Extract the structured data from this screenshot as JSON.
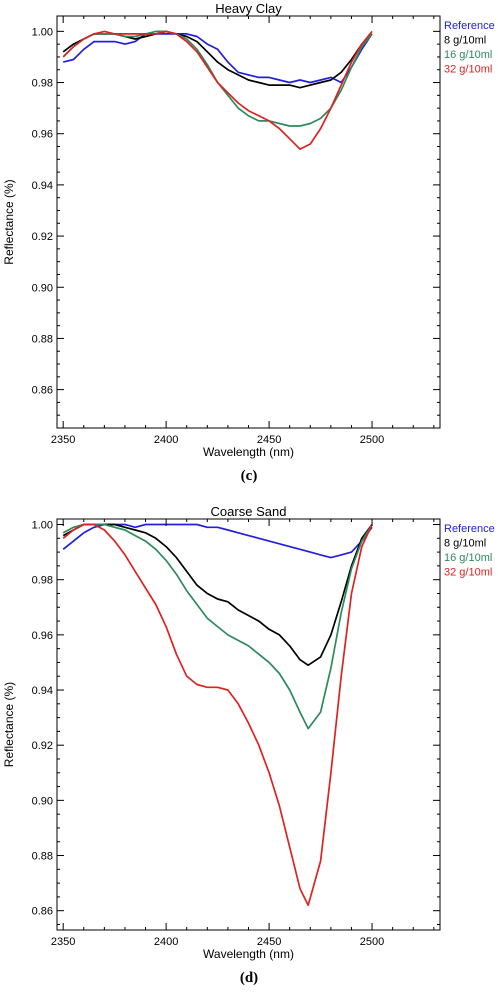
{
  "chart_data": [
    {
      "type": "line",
      "title": "Heavy Clay",
      "xlabel": "Wavelength (nm)",
      "ylabel": "Reflectance (%)",
      "xlim": [
        2347,
        2533
      ],
      "ylim": [
        0.845,
        1.006
      ],
      "xticks": [
        2350,
        2400,
        2450,
        2500
      ],
      "xtick_labels": [
        "2350",
        "2400",
        "2450",
        "2500"
      ],
      "yticks": [
        0.86,
        0.88,
        0.9,
        0.92,
        0.94,
        0.96,
        0.98,
        1.0
      ],
      "ytick_labels": [
        "0.86",
        "0.88",
        "0.90",
        "0.92",
        "0.94",
        "0.96",
        "0.98",
        "1.00"
      ],
      "legend_position": "outside-right-top",
      "caption": "(c)",
      "series": [
        {
          "name": "Reference",
          "color": "#2020dd",
          "x": [
            2350,
            2355,
            2360,
            2365,
            2370,
            2375,
            2380,
            2385,
            2390,
            2395,
            2400,
            2405,
            2410,
            2415,
            2420,
            2425,
            2430,
            2435,
            2440,
            2445,
            2450,
            2455,
            2460,
            2465,
            2470,
            2475,
            2480,
            2485,
            2490,
            2495,
            2500
          ],
          "y": [
            0.988,
            0.989,
            0.993,
            0.996,
            0.996,
            0.996,
            0.995,
            0.996,
            0.999,
            0.999,
            0.999,
            0.999,
            0.999,
            0.998,
            0.995,
            0.993,
            0.988,
            0.984,
            0.983,
            0.982,
            0.982,
            0.981,
            0.98,
            0.981,
            0.98,
            0.981,
            0.982,
            0.98,
            0.986,
            0.993,
            0.999
          ]
        },
        {
          "name": "8 g/10ml",
          "color": "#000000",
          "x": [
            2350,
            2355,
            2360,
            2365,
            2370,
            2375,
            2380,
            2385,
            2390,
            2395,
            2400,
            2405,
            2410,
            2415,
            2420,
            2425,
            2430,
            2435,
            2440,
            2445,
            2450,
            2455,
            2460,
            2465,
            2470,
            2475,
            2480,
            2485,
            2490,
            2495,
            2500
          ],
          "y": [
            0.992,
            0.995,
            0.997,
            0.999,
            0.999,
            0.999,
            0.998,
            0.997,
            0.998,
            0.999,
            1.0,
            0.999,
            0.998,
            0.996,
            0.992,
            0.988,
            0.985,
            0.983,
            0.981,
            0.98,
            0.979,
            0.979,
            0.979,
            0.978,
            0.979,
            0.98,
            0.981,
            0.984,
            0.989,
            0.995,
            0.999
          ]
        },
        {
          "name": "16 g/10ml",
          "color": "#2e8a5c",
          "x": [
            2350,
            2355,
            2360,
            2365,
            2370,
            2375,
            2380,
            2385,
            2390,
            2395,
            2400,
            2405,
            2410,
            2415,
            2420,
            2425,
            2430,
            2435,
            2440,
            2445,
            2450,
            2455,
            2460,
            2465,
            2470,
            2475,
            2480,
            2485,
            2490,
            2495,
            2500
          ],
          "y": [
            0.99,
            0.994,
            0.997,
            0.999,
            0.999,
            0.999,
            0.998,
            0.998,
            0.999,
            1.0,
            1.0,
            0.999,
            0.997,
            0.993,
            0.987,
            0.98,
            0.975,
            0.97,
            0.967,
            0.965,
            0.965,
            0.964,
            0.963,
            0.963,
            0.964,
            0.966,
            0.97,
            0.977,
            0.986,
            0.994,
            0.999
          ]
        },
        {
          "name": "32 g/10ml",
          "color": "#dd2222",
          "x": [
            2350,
            2355,
            2360,
            2365,
            2370,
            2375,
            2380,
            2385,
            2390,
            2395,
            2400,
            2405,
            2410,
            2415,
            2420,
            2425,
            2430,
            2435,
            2440,
            2445,
            2450,
            2455,
            2460,
            2465,
            2470,
            2475,
            2480,
            2485,
            2490,
            2495,
            2500
          ],
          "y": [
            0.99,
            0.994,
            0.997,
            0.999,
            1.0,
            0.999,
            0.999,
            0.999,
            0.999,
            0.999,
            1.0,
            0.999,
            0.996,
            0.992,
            0.986,
            0.98,
            0.976,
            0.972,
            0.969,
            0.967,
            0.965,
            0.962,
            0.958,
            0.954,
            0.956,
            0.962,
            0.97,
            0.979,
            0.988,
            0.995,
            1.0
          ]
        }
      ]
    },
    {
      "type": "line",
      "title": "Coarse Sand",
      "xlabel": "Wavelength (nm)",
      "ylabel": "Reflectance (%)",
      "xlim": [
        2347,
        2533
      ],
      "ylim": [
        0.853,
        1.002
      ],
      "xticks": [
        2350,
        2400,
        2450,
        2500
      ],
      "xtick_labels": [
        "2350",
        "2400",
        "2450",
        "2500"
      ],
      "yticks": [
        0.86,
        0.88,
        0.9,
        0.92,
        0.94,
        0.96,
        0.98,
        1.0
      ],
      "ytick_labels": [
        "0.86",
        "0.88",
        "0.90",
        "0.92",
        "0.94",
        "0.96",
        "0.98",
        "1.00"
      ],
      "legend_position": "outside-right-top",
      "caption": "(d)",
      "series": [
        {
          "name": "Reference",
          "color": "#2020dd",
          "x": [
            2350,
            2355,
            2360,
            2365,
            2370,
            2375,
            2380,
            2385,
            2390,
            2395,
            2400,
            2405,
            2410,
            2415,
            2420,
            2425,
            2430,
            2435,
            2440,
            2445,
            2450,
            2455,
            2460,
            2465,
            2470,
            2475,
            2480,
            2485,
            2490,
            2495,
            2500
          ],
          "y": [
            0.991,
            0.994,
            0.997,
            0.999,
            1.0,
            1.0,
            1.0,
            0.999,
            1.0,
            1.0,
            1.0,
            1.0,
            1.0,
            1.0,
            0.999,
            0.999,
            0.998,
            0.997,
            0.996,
            0.995,
            0.994,
            0.993,
            0.992,
            0.991,
            0.99,
            0.989,
            0.988,
            0.989,
            0.99,
            0.994,
            0.999
          ]
        },
        {
          "name": "8 g/10ml",
          "color": "#000000",
          "x": [
            2350,
            2355,
            2360,
            2365,
            2370,
            2375,
            2380,
            2385,
            2390,
            2395,
            2400,
            2405,
            2410,
            2415,
            2420,
            2425,
            2430,
            2435,
            2440,
            2445,
            2450,
            2455,
            2460,
            2465,
            2469,
            2475,
            2480,
            2485,
            2490,
            2495,
            2500
          ],
          "y": [
            0.996,
            0.998,
            1.0,
            1.0,
            1.0,
            1.0,
            0.999,
            0.998,
            0.997,
            0.995,
            0.992,
            0.988,
            0.983,
            0.978,
            0.975,
            0.973,
            0.972,
            0.969,
            0.967,
            0.965,
            0.962,
            0.96,
            0.956,
            0.951,
            0.949,
            0.952,
            0.96,
            0.972,
            0.985,
            0.995,
            1.0
          ]
        },
        {
          "name": "16 g/10ml",
          "color": "#2e8a5c",
          "x": [
            2350,
            2355,
            2360,
            2365,
            2370,
            2375,
            2380,
            2385,
            2390,
            2395,
            2400,
            2405,
            2410,
            2415,
            2420,
            2425,
            2430,
            2435,
            2440,
            2445,
            2450,
            2455,
            2460,
            2465,
            2469,
            2475,
            2480,
            2485,
            2490,
            2495,
            2500
          ],
          "y": [
            0.997,
            0.999,
            1.0,
            1.0,
            1.0,
            0.999,
            0.998,
            0.996,
            0.994,
            0.991,
            0.987,
            0.982,
            0.976,
            0.971,
            0.966,
            0.963,
            0.96,
            0.958,
            0.956,
            0.953,
            0.95,
            0.946,
            0.94,
            0.932,
            0.926,
            0.932,
            0.948,
            0.968,
            0.984,
            0.994,
            1.0
          ]
        },
        {
          "name": "32 g/10ml",
          "color": "#dd2222",
          "x": [
            2350,
            2355,
            2360,
            2365,
            2370,
            2375,
            2380,
            2385,
            2390,
            2395,
            2400,
            2405,
            2410,
            2415,
            2420,
            2425,
            2430,
            2435,
            2440,
            2445,
            2450,
            2455,
            2460,
            2465,
            2469,
            2475,
            2480,
            2485,
            2490,
            2495,
            2500
          ],
          "y": [
            0.995,
            0.998,
            1.0,
            1.0,
            0.998,
            0.994,
            0.989,
            0.983,
            0.977,
            0.971,
            0.963,
            0.953,
            0.945,
            0.942,
            0.941,
            0.941,
            0.94,
            0.935,
            0.928,
            0.92,
            0.91,
            0.898,
            0.883,
            0.868,
            0.862,
            0.878,
            0.91,
            0.945,
            0.975,
            0.992,
            1.0
          ]
        }
      ]
    }
  ]
}
